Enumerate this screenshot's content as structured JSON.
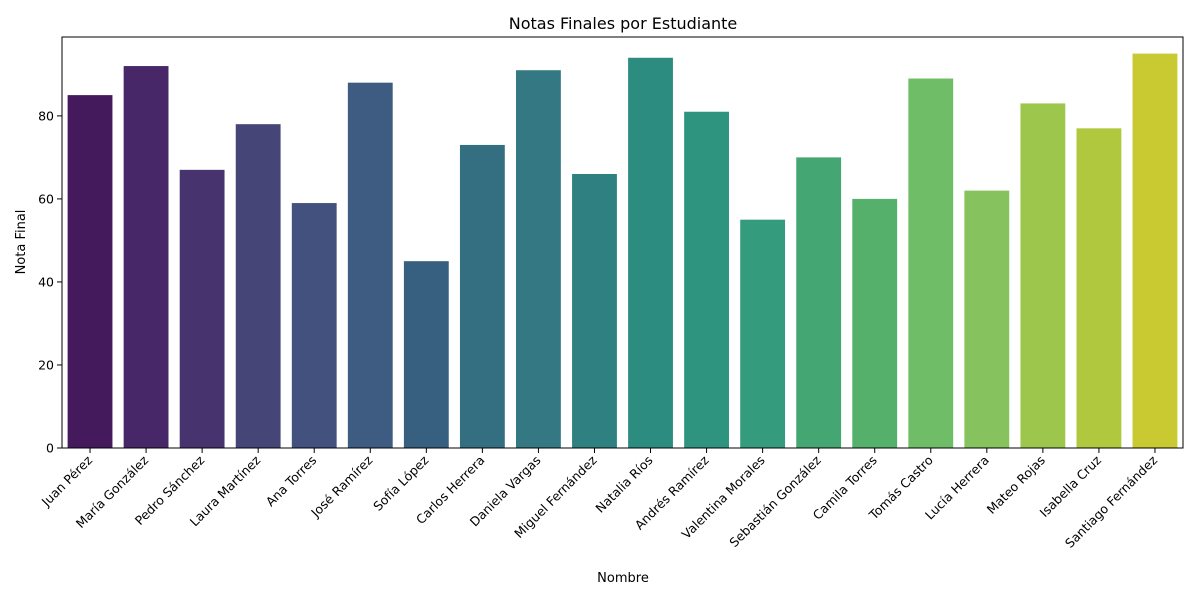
{
  "chart_data": {
    "type": "bar",
    "title": "Notas Finales por Estudiante",
    "xlabel": "Nombre",
    "ylabel": "Nota Final",
    "ylim": [
      0,
      99
    ],
    "yticks": [
      0,
      20,
      40,
      60,
      80
    ],
    "grid": false,
    "legend": "none",
    "categories": [
      "Juan Pérez",
      "María González",
      "Pedro Sánchez",
      "Laura Martínez",
      "Ana Torres",
      "José Ramírez",
      "Sofía López",
      "Carlos Herrera",
      "Daniela Vargas",
      "Miguel Fernández",
      "Natalia Ríos",
      "Andrés Ramírez",
      "Valentina Morales",
      "Sebastián González",
      "Camila Torres",
      "Tomás Castro",
      "Lucía Herrera",
      "Mateo Rojas",
      "Isabella Cruz",
      "Santiago Fernández"
    ],
    "values": [
      85,
      92,
      67,
      78,
      59,
      88,
      45,
      73,
      91,
      66,
      94,
      81,
      55,
      70,
      60,
      89,
      62,
      83,
      77,
      95
    ],
    "colors": [
      "#451a5c",
      "#472768",
      "#47346f",
      "#464577",
      "#42517e",
      "#3e5b82",
      "#375f7f",
      "#346e81",
      "#337882",
      "#2e8180",
      "#2c8c80",
      "#2e9480",
      "#349b7c",
      "#44a673",
      "#55b06b",
      "#70bd67",
      "#86c25d",
      "#9dc74c",
      "#b0c83e",
      "#c9c931"
    ]
  }
}
